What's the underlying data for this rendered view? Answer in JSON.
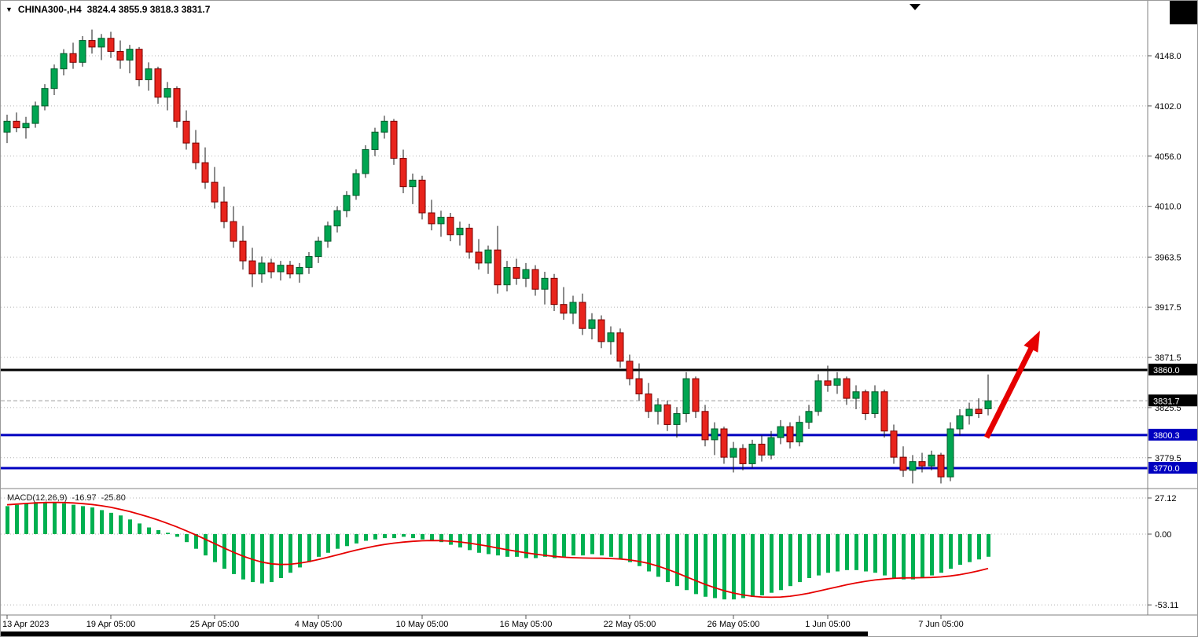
{
  "header": {
    "symbol_timeframe": "CHINA300-,H4",
    "ohlc_values": "3824.4 3855.9 3818.3 3831.7"
  },
  "icons": {
    "symbol_dropdown": "▼"
  },
  "indicator": {
    "name": "MACD(12,26,9)",
    "main_value": "-16.97",
    "signal_value": "-25.80"
  },
  "chart_data": {
    "type": "candlestick",
    "title": "CHINA300-,H4",
    "current_candle": {
      "open": 3824.4,
      "high": 3855.9,
      "low": 3818.3,
      "close": 3831.7
    },
    "price_ylim": [
      3752,
      4184
    ],
    "price_axis_ticks": [
      "4148.0",
      "4102.0",
      "4056.0",
      "4010.0",
      "3963.5",
      "3917.5",
      "3871.5",
      "3825.5",
      "3779.5"
    ],
    "hlines": [
      {
        "value": 3860.0,
        "label": "3860.0",
        "color": "#000000",
        "width": 3
      },
      {
        "value": 3800.3,
        "label": "3800.3",
        "color": "#0000c0",
        "width": 3
      },
      {
        "value": 3770.0,
        "label": "3770.0",
        "color": "#0000c0",
        "width": 3
      }
    ],
    "current_price": {
      "value": 3831.7,
      "label": "3831.7"
    },
    "x_labels": [
      {
        "i": 0,
        "t": "13 Apr 2023"
      },
      {
        "i": 11,
        "t": "19 Apr 05:00"
      },
      {
        "i": 22,
        "t": "25 Apr 05:00"
      },
      {
        "i": 33,
        "t": "4 May 05:00"
      },
      {
        "i": 44,
        "t": "10 May 05:00"
      },
      {
        "i": 55,
        "t": "16 May 05:00"
      },
      {
        "i": 66,
        "t": "22 May 05:00"
      },
      {
        "i": 77,
        "t": "26 May 05:00"
      },
      {
        "i": 87,
        "t": "1 Jun 05:00"
      },
      {
        "i": 99,
        "t": "7 Jun 05:00"
      }
    ],
    "candles": [
      [
        4078,
        4094,
        4068,
        4088
      ],
      [
        4088,
        4096,
        4078,
        4082
      ],
      [
        4082,
        4092,
        4072,
        4086
      ],
      [
        4086,
        4106,
        4082,
        4102
      ],
      [
        4102,
        4122,
        4098,
        4118
      ],
      [
        4118,
        4140,
        4112,
        4136
      ],
      [
        4136,
        4154,
        4130,
        4150
      ],
      [
        4150,
        4160,
        4136,
        4142
      ],
      [
        4142,
        4166,
        4138,
        4162
      ],
      [
        4162,
        4172,
        4150,
        4156
      ],
      [
        4156,
        4168,
        4144,
        4164
      ],
      [
        4164,
        4170,
        4146,
        4152
      ],
      [
        4152,
        4162,
        4136,
        4144
      ],
      [
        4144,
        4158,
        4132,
        4154
      ],
      [
        4154,
        4156,
        4120,
        4126
      ],
      [
        4126,
        4142,
        4116,
        4136
      ],
      [
        4136,
        4138,
        4104,
        4110
      ],
      [
        4110,
        4124,
        4098,
        4118
      ],
      [
        4118,
        4120,
        4082,
        4088
      ],
      [
        4088,
        4098,
        4062,
        4068
      ],
      [
        4068,
        4080,
        4044,
        4050
      ],
      [
        4050,
        4064,
        4026,
        4032
      ],
      [
        4032,
        4046,
        4008,
        4014
      ],
      [
        4014,
        4028,
        3990,
        3996
      ],
      [
        3996,
        4010,
        3972,
        3978
      ],
      [
        3978,
        3992,
        3952,
        3960
      ],
      [
        3960,
        3972,
        3936,
        3948
      ],
      [
        3948,
        3964,
        3940,
        3958
      ],
      [
        3958,
        3962,
        3944,
        3950
      ],
      [
        3950,
        3960,
        3942,
        3956
      ],
      [
        3956,
        3960,
        3944,
        3948
      ],
      [
        3948,
        3958,
        3940,
        3954
      ],
      [
        3954,
        3968,
        3948,
        3964
      ],
      [
        3964,
        3982,
        3958,
        3978
      ],
      [
        3978,
        3996,
        3972,
        3992
      ],
      [
        3992,
        4010,
        3986,
        4006
      ],
      [
        4006,
        4024,
        4000,
        4020
      ],
      [
        4020,
        4044,
        4016,
        4040
      ],
      [
        4040,
        4066,
        4036,
        4062
      ],
      [
        4062,
        4082,
        4056,
        4078
      ],
      [
        4078,
        4093,
        4072,
        4088
      ],
      [
        4088,
        4090,
        4048,
        4054
      ],
      [
        4054,
        4062,
        4022,
        4028
      ],
      [
        4028,
        4040,
        4012,
        4034
      ],
      [
        4034,
        4038,
        3998,
        4004
      ],
      [
        4004,
        4016,
        3988,
        3994
      ],
      [
        3994,
        4006,
        3982,
        4000
      ],
      [
        4000,
        4004,
        3978,
        3984
      ],
      [
        3984,
        3996,
        3974,
        3990
      ],
      [
        3990,
        3994,
        3962,
        3968
      ],
      [
        3968,
        3980,
        3952,
        3958
      ],
      [
        3958,
        3974,
        3948,
        3970
      ],
      [
        3970,
        3992,
        3930,
        3938
      ],
      [
        3938,
        3960,
        3932,
        3954
      ],
      [
        3954,
        3962,
        3938,
        3944
      ],
      [
        3944,
        3958,
        3936,
        3952
      ],
      [
        3952,
        3956,
        3928,
        3934
      ],
      [
        3934,
        3950,
        3920,
        3944
      ],
      [
        3944,
        3948,
        3914,
        3920
      ],
      [
        3920,
        3936,
        3906,
        3912
      ],
      [
        3912,
        3928,
        3902,
        3922
      ],
      [
        3922,
        3930,
        3892,
        3898
      ],
      [
        3898,
        3912,
        3888,
        3906
      ],
      [
        3906,
        3910,
        3880,
        3886
      ],
      [
        3886,
        3900,
        3874,
        3894
      ],
      [
        3894,
        3898,
        3862,
        3868
      ],
      [
        3868,
        3874,
        3846,
        3852
      ],
      [
        3852,
        3866,
        3832,
        3838
      ],
      [
        3838,
        3848,
        3816,
        3822
      ],
      [
        3822,
        3834,
        3810,
        3828
      ],
      [
        3828,
        3832,
        3804,
        3810
      ],
      [
        3810,
        3826,
        3798,
        3820
      ],
      [
        3820,
        3858,
        3812,
        3852
      ],
      [
        3852,
        3854,
        3816,
        3822
      ],
      [
        3822,
        3828,
        3790,
        3796
      ],
      [
        3796,
        3812,
        3782,
        3806
      ],
      [
        3806,
        3808,
        3774,
        3780
      ],
      [
        3780,
        3794,
        3766,
        3788
      ],
      [
        3788,
        3792,
        3768,
        3774
      ],
      [
        3774,
        3796,
        3770,
        3792
      ],
      [
        3792,
        3800,
        3776,
        3782
      ],
      [
        3782,
        3804,
        3778,
        3798
      ],
      [
        3798,
        3814,
        3792,
        3808
      ],
      [
        3808,
        3812,
        3788,
        3794
      ],
      [
        3794,
        3818,
        3790,
        3812
      ],
      [
        3812,
        3828,
        3806,
        3822
      ],
      [
        3822,
        3856,
        3818,
        3850
      ],
      [
        3850,
        3864,
        3840,
        3846
      ],
      [
        3846,
        3858,
        3838,
        3852
      ],
      [
        3852,
        3854,
        3828,
        3834
      ],
      [
        3834,
        3846,
        3824,
        3840
      ],
      [
        3840,
        3842,
        3814,
        3820
      ],
      [
        3820,
        3846,
        3816,
        3840
      ],
      [
        3840,
        3842,
        3798,
        3804
      ],
      [
        3804,
        3810,
        3774,
        3780
      ],
      [
        3780,
        3790,
        3762,
        3768
      ],
      [
        3768,
        3782,
        3756,
        3776
      ],
      [
        3776,
        3784,
        3766,
        3772
      ],
      [
        3772,
        3786,
        3768,
        3782
      ],
      [
        3782,
        3784,
        3756,
        3762
      ],
      [
        3762,
        3812,
        3758,
        3806
      ],
      [
        3806,
        3824,
        3800,
        3818
      ],
      [
        3818,
        3830,
        3810,
        3824
      ],
      [
        3824,
        3834,
        3816,
        3820
      ],
      [
        3824.4,
        3855.9,
        3818.3,
        3831.7
      ]
    ],
    "macd": {
      "label": "MACD(12,26,9) -16.97 -25.80",
      "axis_ticks": [
        "27.12",
        "0.00",
        "-53.11"
      ],
      "ylim": [
        -60.7,
        33.6
      ],
      "histogram": [
        21,
        22,
        23,
        24,
        24,
        24,
        23,
        22,
        21,
        20,
        18,
        16,
        14,
        11,
        8,
        5,
        3,
        1,
        -2,
        -6,
        -11,
        -16,
        -21,
        -26,
        -30,
        -34,
        -36,
        -37,
        -36,
        -33,
        -29,
        -25,
        -21,
        -17,
        -14,
        -11,
        -9,
        -7,
        -5,
        -4,
        -3,
        -3,
        -2,
        -3,
        -4,
        -5,
        -6,
        -8,
        -10,
        -12,
        -14,
        -15,
        -16,
        -17,
        -17,
        -18,
        -18,
        -17,
        -18,
        -17,
        -16,
        -16,
        -15,
        -16,
        -17,
        -19,
        -21,
        -24,
        -28,
        -32,
        -36,
        -39,
        -42,
        -45,
        -47,
        -48,
        -49,
        -49,
        -48,
        -47,
        -46,
        -44,
        -42,
        -39,
        -36,
        -33,
        -31,
        -29,
        -28,
        -27,
        -27,
        -28,
        -29,
        -31,
        -33,
        -34,
        -34,
        -33,
        -31,
        -29,
        -26,
        -23,
        -21,
        -19,
        -16.97
      ],
      "signal": [
        22,
        22.5,
        23,
        23.4,
        23.7,
        23.8,
        23.7,
        23.4,
        22.9,
        22.2,
        21.3,
        20.1,
        18.6,
        16.9,
        15,
        12.9,
        10.6,
        8.1,
        5.4,
        2.5,
        -0.6,
        -3.8,
        -7.1,
        -10.4,
        -13.6,
        -16.5,
        -19,
        -21,
        -22.3,
        -22.8,
        -22.6,
        -21.8,
        -20.6,
        -19.1,
        -17.4,
        -15.6,
        -13.8,
        -12,
        -10.4,
        -9,
        -7.8,
        -6.8,
        -6,
        -5.4,
        -5,
        -4.8,
        -4.9,
        -5.3,
        -5.9,
        -6.8,
        -7.9,
        -9.1,
        -10.4,
        -11.7,
        -12.9,
        -14,
        -15,
        -15.9,
        -16.7,
        -17.3,
        -17.7,
        -17.9,
        -18,
        -18.1,
        -18.3,
        -18.7,
        -19.4,
        -20.5,
        -22,
        -24,
        -26.4,
        -29.1,
        -32,
        -34.9,
        -37.7,
        -40.2,
        -42.4,
        -44.2,
        -45.6,
        -46.6,
        -47.2,
        -47.4,
        -47.2,
        -46.6,
        -45.6,
        -44.3,
        -42.8,
        -41.2,
        -39.6,
        -38,
        -36.6,
        -35.4,
        -34.4,
        -33.7,
        -33.2,
        -32.9,
        -32.8,
        -32.7,
        -32.5,
        -32.1,
        -31.4,
        -30.4,
        -29.1,
        -27.6,
        -25.8
      ]
    },
    "annotation_arrow": {
      "color": "#e60000",
      "from": [
        1254,
        556
      ],
      "to": [
        1322,
        420
      ]
    },
    "colors": {
      "up": "#00a551",
      "up_border": "#005a2a",
      "down": "#e8241c",
      "down_border": "#7a0000",
      "wick": "#1a1a1a",
      "grid": "#b4b4b4",
      "hist": "#00b050",
      "signal_line": "#e60000",
      "axis_text": "#000000",
      "frame": "#808080"
    }
  }
}
